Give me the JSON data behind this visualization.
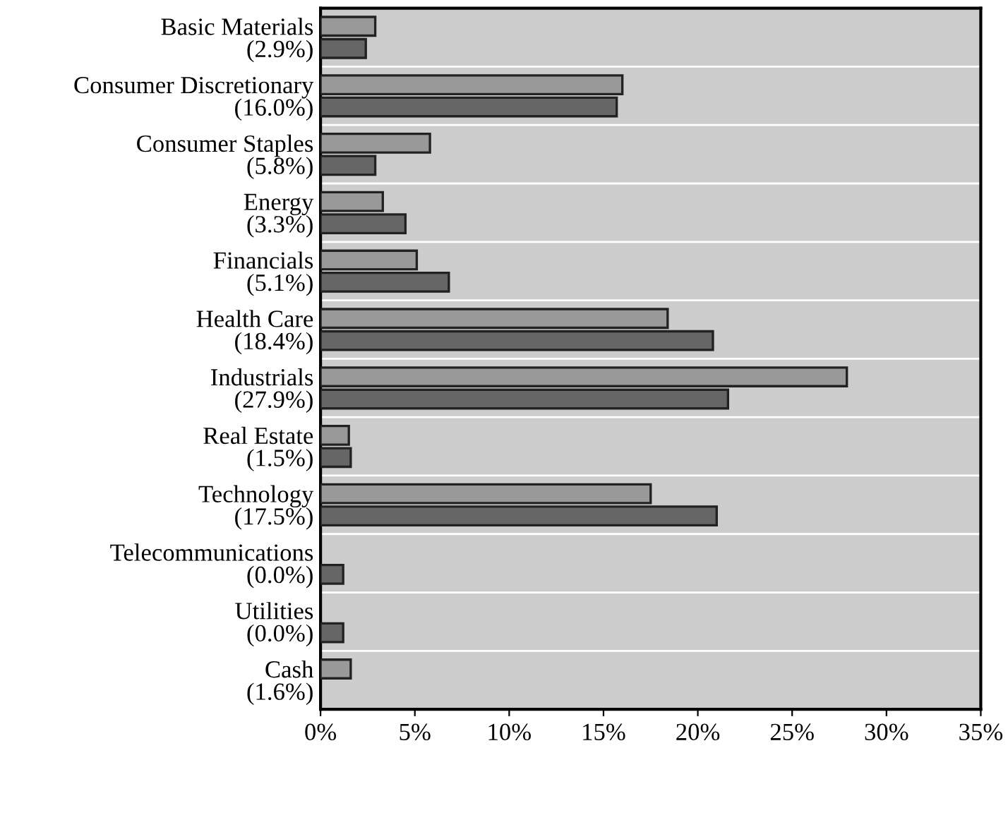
{
  "chart_data": {
    "type": "bar",
    "orientation": "horizontal",
    "categories": [
      "Basic Materials\n(2.9%)",
      "Consumer Discretionary\n(16.0%)",
      "Consumer Staples\n(5.8%)",
      "Energy\n(3.3%)",
      "Financials\n(5.1%)",
      "Health Care\n(18.4%)",
      "Industrials\n(27.9%)",
      "Real Estate\n(1.5%)",
      "Technology\n(17.5%)",
      "Telecommunications\n(0.0%)",
      "Utilities\n(0.0%)",
      "Cash\n(1.6%)"
    ],
    "series": [
      {
        "color": "#999999",
        "values": [
          2.9,
          16.0,
          5.8,
          3.3,
          5.1,
          18.4,
          27.9,
          1.5,
          17.5,
          0.0,
          0.0,
          1.6
        ]
      },
      {
        "color": "#666666",
        "values": [
          2.4,
          15.7,
          2.9,
          4.5,
          6.8,
          20.8,
          21.6,
          1.6,
          21.0,
          1.2,
          1.2,
          0.0
        ]
      }
    ],
    "xlim": [
      0,
      35
    ],
    "xticks": [
      {
        "value": 0,
        "label": "0%"
      },
      {
        "value": 5,
        "label": "5%"
      },
      {
        "value": 10,
        "label": "10%"
      },
      {
        "value": 15,
        "label": "15%"
      },
      {
        "value": 20,
        "label": "20%"
      },
      {
        "value": 25,
        "label": "25%"
      },
      {
        "value": 30,
        "label": "30%"
      },
      {
        "value": 35,
        "label": "35%"
      }
    ],
    "grid": "y"
  }
}
